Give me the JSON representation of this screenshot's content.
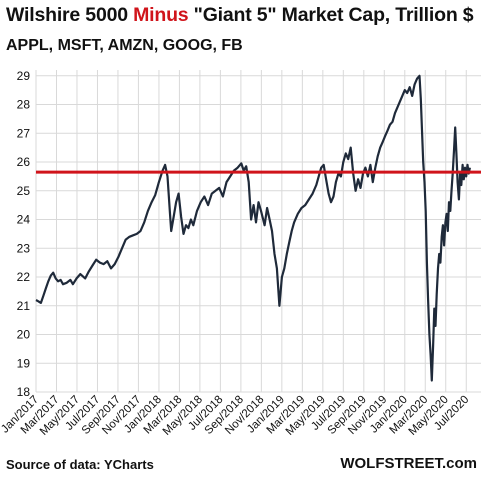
{
  "chart_data": {
    "type": "line",
    "title_parts": {
      "a": "Wilshire 5000 ",
      "b": "Minus",
      "c": " \"Giant 5\" Market Cap, Trillion $"
    },
    "subtitle": "APPL, MSFT, AMZN, GOOG, FB",
    "ylim": [
      18,
      29.2
    ],
    "yticks": [
      18,
      19,
      20,
      21,
      22,
      23,
      24,
      25,
      26,
      27,
      28,
      29
    ],
    "xlim": [
      2017.0,
      2020.62
    ],
    "xticks": [
      {
        "label": "Jan/2017",
        "x": 2017.0
      },
      {
        "label": "Mar/2017",
        "x": 2017.1667
      },
      {
        "label": "May/2017",
        "x": 2017.3333
      },
      {
        "label": "Jul/2017",
        "x": 2017.5
      },
      {
        "label": "Sep/2017",
        "x": 2017.6667
      },
      {
        "label": "Nov/2017",
        "x": 2017.8333
      },
      {
        "label": "Jan/2018",
        "x": 2018.0
      },
      {
        "label": "Mar/2018",
        "x": 2018.1667
      },
      {
        "label": "May/2018",
        "x": 2018.3333
      },
      {
        "label": "Jul/2018",
        "x": 2018.5
      },
      {
        "label": "Sep/2018",
        "x": 2018.6667
      },
      {
        "label": "Nov/2018",
        "x": 2018.8333
      },
      {
        "label": "Jan/2019",
        "x": 2019.0
      },
      {
        "label": "Mar/2019",
        "x": 2019.1667
      },
      {
        "label": "May/2019",
        "x": 2019.3333
      },
      {
        "label": "Jul/2019",
        "x": 2019.5
      },
      {
        "label": "Sep/2019",
        "x": 2019.6667
      },
      {
        "label": "Nov/2019",
        "x": 2019.8333
      },
      {
        "label": "Jan/2020",
        "x": 2020.0
      },
      {
        "label": "Mar/2020",
        "x": 2020.1667
      },
      {
        "label": "May/2020",
        "x": 2020.3333
      },
      {
        "label": "Jul/2020",
        "x": 2020.5
      }
    ],
    "reference_line": {
      "y": 25.65,
      "color": "#d0141b"
    },
    "grid": true,
    "series": [
      {
        "color": "#1f2a3a",
        "points": [
          [
            2017.0,
            21.2
          ],
          [
            2017.02,
            21.15
          ],
          [
            2017.04,
            21.1
          ],
          [
            2017.06,
            21.35
          ],
          [
            2017.08,
            21.6
          ],
          [
            2017.1,
            21.85
          ],
          [
            2017.12,
            22.05
          ],
          [
            2017.14,
            22.15
          ],
          [
            2017.16,
            21.95
          ],
          [
            2017.18,
            21.85
          ],
          [
            2017.2,
            21.9
          ],
          [
            2017.22,
            21.75
          ],
          [
            2017.25,
            21.8
          ],
          [
            2017.28,
            21.9
          ],
          [
            2017.3,
            21.75
          ],
          [
            2017.33,
            21.95
          ],
          [
            2017.36,
            22.1
          ],
          [
            2017.4,
            21.95
          ],
          [
            2017.43,
            22.2
          ],
          [
            2017.46,
            22.4
          ],
          [
            2017.49,
            22.6
          ],
          [
            2017.52,
            22.5
          ],
          [
            2017.55,
            22.45
          ],
          [
            2017.58,
            22.55
          ],
          [
            2017.61,
            22.3
          ],
          [
            2017.64,
            22.45
          ],
          [
            2017.67,
            22.7
          ],
          [
            2017.7,
            23.0
          ],
          [
            2017.73,
            23.3
          ],
          [
            2017.76,
            23.4
          ],
          [
            2017.79,
            23.45
          ],
          [
            2017.82,
            23.5
          ],
          [
            2017.85,
            23.6
          ],
          [
            2017.88,
            23.9
          ],
          [
            2017.91,
            24.3
          ],
          [
            2017.94,
            24.6
          ],
          [
            2017.97,
            24.85
          ],
          [
            2018.0,
            25.3
          ],
          [
            2018.03,
            25.7
          ],
          [
            2018.05,
            25.9
          ],
          [
            2018.07,
            25.5
          ],
          [
            2018.09,
            24.2
          ],
          [
            2018.1,
            23.6
          ],
          [
            2018.12,
            24.1
          ],
          [
            2018.14,
            24.6
          ],
          [
            2018.16,
            24.9
          ],
          [
            2018.18,
            24.1
          ],
          [
            2018.2,
            23.5
          ],
          [
            2018.22,
            23.8
          ],
          [
            2018.24,
            23.7
          ],
          [
            2018.26,
            24.0
          ],
          [
            2018.28,
            23.8
          ],
          [
            2018.31,
            24.3
          ],
          [
            2018.34,
            24.6
          ],
          [
            2018.37,
            24.8
          ],
          [
            2018.4,
            24.5
          ],
          [
            2018.43,
            24.9
          ],
          [
            2018.46,
            25.0
          ],
          [
            2018.49,
            25.1
          ],
          [
            2018.52,
            24.8
          ],
          [
            2018.55,
            25.3
          ],
          [
            2018.58,
            25.5
          ],
          [
            2018.61,
            25.7
          ],
          [
            2018.64,
            25.8
          ],
          [
            2018.67,
            25.95
          ],
          [
            2018.69,
            25.7
          ],
          [
            2018.71,
            25.85
          ],
          [
            2018.73,
            25.3
          ],
          [
            2018.75,
            24.0
          ],
          [
            2018.77,
            24.5
          ],
          [
            2018.79,
            23.9
          ],
          [
            2018.81,
            24.6
          ],
          [
            2018.83,
            24.3
          ],
          [
            2018.86,
            23.8
          ],
          [
            2018.88,
            24.4
          ],
          [
            2018.9,
            24.0
          ],
          [
            2018.92,
            23.6
          ],
          [
            2018.94,
            22.8
          ],
          [
            2018.96,
            22.3
          ],
          [
            2018.98,
            21.0
          ],
          [
            2019.0,
            22.0
          ],
          [
            2019.02,
            22.3
          ],
          [
            2019.04,
            22.8
          ],
          [
            2019.06,
            23.2
          ],
          [
            2019.08,
            23.6
          ],
          [
            2019.1,
            23.9
          ],
          [
            2019.13,
            24.2
          ],
          [
            2019.16,
            24.4
          ],
          [
            2019.19,
            24.5
          ],
          [
            2019.22,
            24.7
          ],
          [
            2019.25,
            24.9
          ],
          [
            2019.28,
            25.2
          ],
          [
            2019.3,
            25.5
          ],
          [
            2019.32,
            25.8
          ],
          [
            2019.34,
            25.9
          ],
          [
            2019.36,
            25.4
          ],
          [
            2019.38,
            24.9
          ],
          [
            2019.4,
            24.6
          ],
          [
            2019.42,
            24.8
          ],
          [
            2019.44,
            25.3
          ],
          [
            2019.46,
            25.6
          ],
          [
            2019.48,
            25.5
          ],
          [
            2019.5,
            26.0
          ],
          [
            2019.52,
            26.3
          ],
          [
            2019.54,
            26.1
          ],
          [
            2019.56,
            26.5
          ],
          [
            2019.58,
            25.6
          ],
          [
            2019.6,
            25.0
          ],
          [
            2019.62,
            25.4
          ],
          [
            2019.64,
            25.1
          ],
          [
            2019.66,
            25.6
          ],
          [
            2019.68,
            25.8
          ],
          [
            2019.7,
            25.5
          ],
          [
            2019.72,
            25.9
          ],
          [
            2019.74,
            25.3
          ],
          [
            2019.76,
            25.8
          ],
          [
            2019.78,
            26.2
          ],
          [
            2019.8,
            26.5
          ],
          [
            2019.82,
            26.7
          ],
          [
            2019.84,
            26.9
          ],
          [
            2019.86,
            27.1
          ],
          [
            2019.88,
            27.3
          ],
          [
            2019.9,
            27.4
          ],
          [
            2019.92,
            27.7
          ],
          [
            2019.94,
            27.9
          ],
          [
            2019.96,
            28.1
          ],
          [
            2019.98,
            28.3
          ],
          [
            2020.0,
            28.5
          ],
          [
            2020.02,
            28.4
          ],
          [
            2020.04,
            28.6
          ],
          [
            2020.06,
            28.3
          ],
          [
            2020.08,
            28.7
          ],
          [
            2020.1,
            28.9
          ],
          [
            2020.12,
            29.0
          ],
          [
            2020.13,
            28.2
          ],
          [
            2020.14,
            27.1
          ],
          [
            2020.15,
            26.0
          ],
          [
            2020.16,
            25.3
          ],
          [
            2020.17,
            24.3
          ],
          [
            2020.18,
            22.5
          ],
          [
            2020.19,
            21.2
          ],
          [
            2020.2,
            20.0
          ],
          [
            2020.21,
            19.3
          ],
          [
            2020.22,
            18.4
          ],
          [
            2020.23,
            19.6
          ],
          [
            2020.24,
            20.9
          ],
          [
            2020.25,
            20.3
          ],
          [
            2020.26,
            21.4
          ],
          [
            2020.27,
            22.3
          ],
          [
            2020.28,
            22.8
          ],
          [
            2020.29,
            22.5
          ],
          [
            2020.3,
            23.4
          ],
          [
            2020.31,
            23.8
          ],
          [
            2020.32,
            23.1
          ],
          [
            2020.33,
            23.9
          ],
          [
            2020.34,
            24.2
          ],
          [
            2020.35,
            23.6
          ],
          [
            2020.36,
            24.6
          ],
          [
            2020.37,
            24.3
          ],
          [
            2020.38,
            25.0
          ],
          [
            2020.39,
            25.6
          ],
          [
            2020.4,
            26.4
          ],
          [
            2020.41,
            27.2
          ],
          [
            2020.42,
            26.3
          ],
          [
            2020.43,
            25.3
          ],
          [
            2020.44,
            24.7
          ],
          [
            2020.45,
            25.6
          ],
          [
            2020.46,
            25.2
          ],
          [
            2020.47,
            25.9
          ],
          [
            2020.48,
            25.4
          ],
          [
            2020.49,
            25.8
          ],
          [
            2020.5,
            25.5
          ],
          [
            2020.51,
            25.9
          ],
          [
            2020.52,
            25.6
          ],
          [
            2020.53,
            25.8
          ]
        ]
      }
    ]
  },
  "footer": {
    "source": "Source of data: YCharts",
    "brand": "WOLFSTREET.com"
  }
}
